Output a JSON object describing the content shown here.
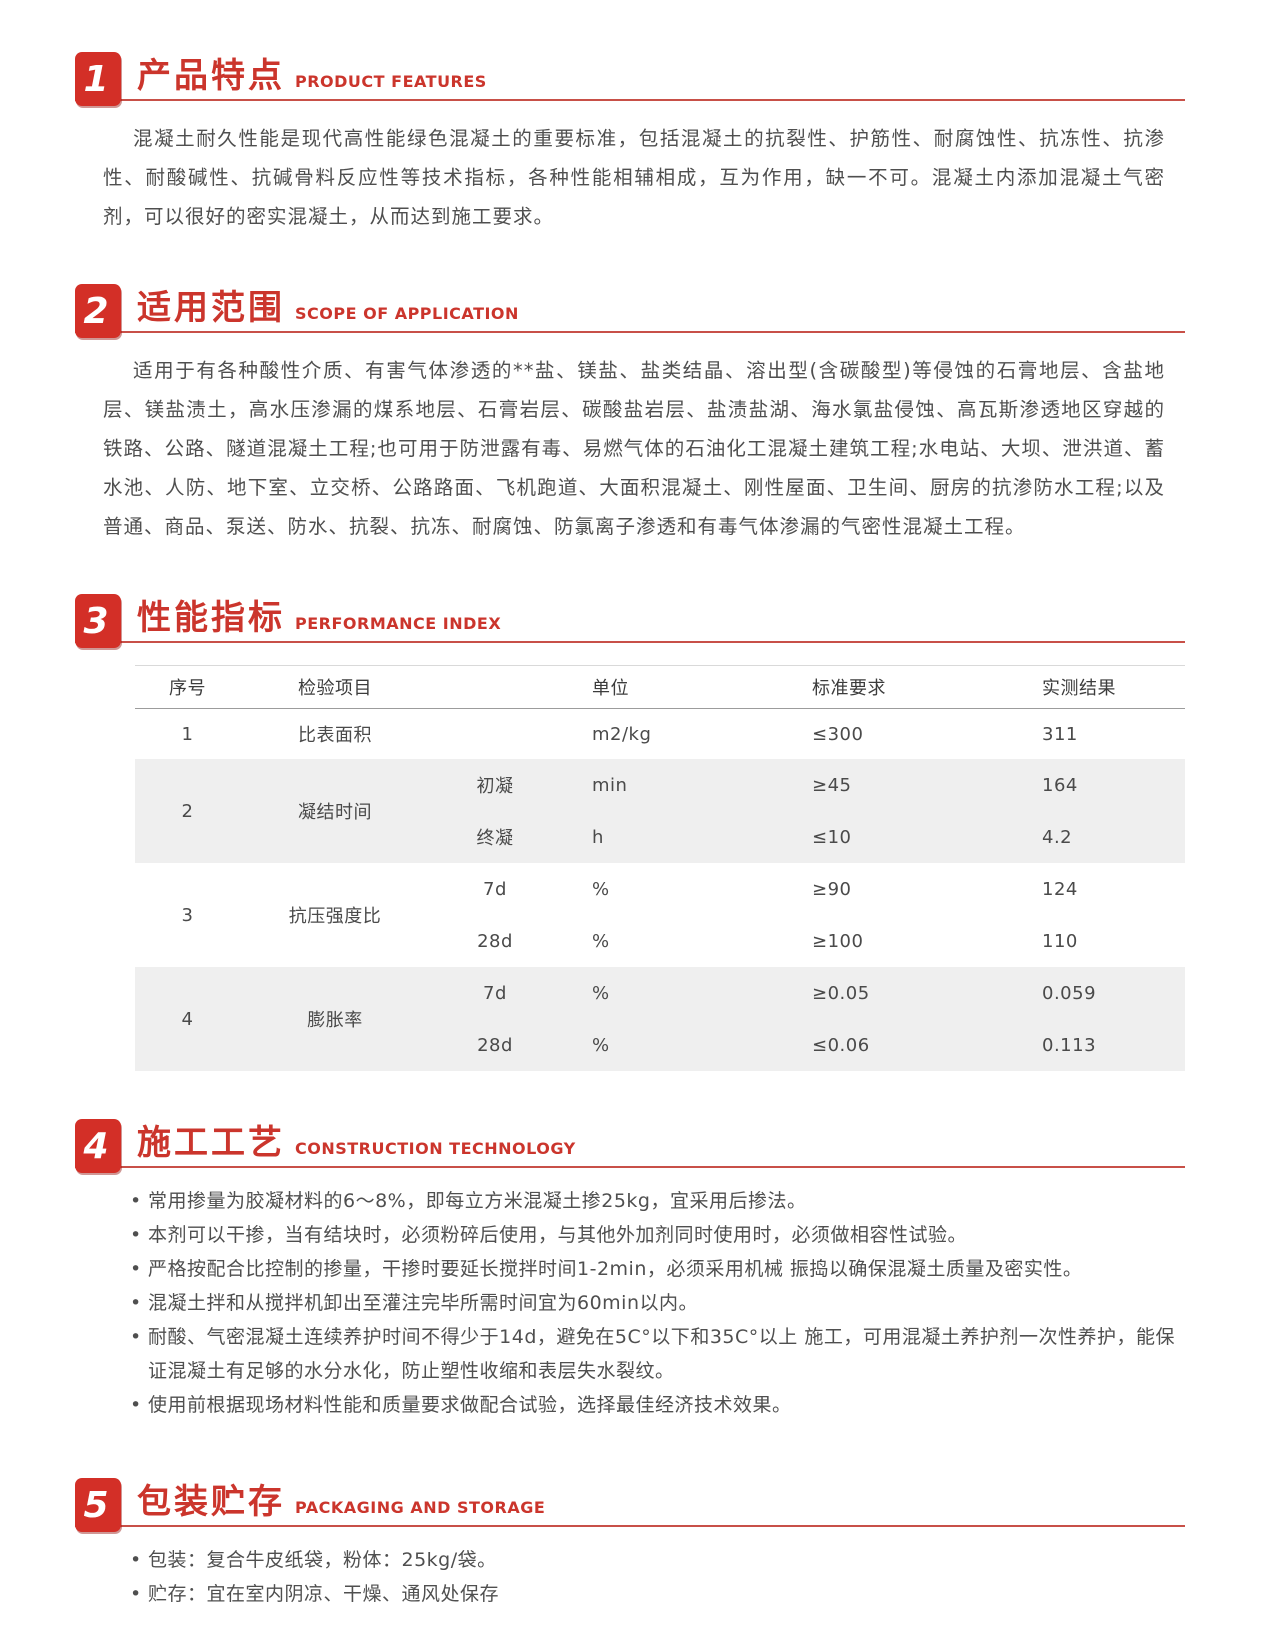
{
  "colors": {
    "accent_red": "#d32f27",
    "title_red": "#cb352c",
    "rule_red": "#c85048",
    "body_text": "#4f4f4f",
    "table_shade": "#efefef"
  },
  "sections": {
    "s1": {
      "num": "1",
      "title_cn": "产品特点",
      "title_en": "PRODUCT FEATURES",
      "body": "混凝土耐久性能是现代高性能绿色混凝土的重要标准，包括混凝土的抗裂性、护筋性、耐腐蚀性、抗冻性、抗渗性、耐酸碱性、抗碱骨料反应性等技术指标，各种性能相辅相成，互为作用，缺一不可。混凝土内添加混凝土气密剂，可以很好的密实混凝土，从而达到施工要求。"
    },
    "s2": {
      "num": "2",
      "title_cn": "适用范围",
      "title_en": "SCOPE OF APPLICATION",
      "body": "适用于有各种酸性介质、有害气体渗透的**盐、镁盐、盐类结晶、溶出型(含碳酸型)等侵蚀的石膏地层、含盐地层、镁盐渍土，高水压渗漏的煤系地层、石膏岩层、碳酸盐岩层、盐渍盐湖、海水氯盐侵蚀、高瓦斯渗透地区穿越的铁路、公路、隧道混凝土工程;也可用于防泄露有毒、易燃气体的石油化工混凝土建筑工程;水电站、大坝、泄洪道、蓄水池、人防、地下室、立交桥、公路路面、飞机跑道、大面积混凝土、刚性屋面、卫生间、厨房的抗渗防水工程;以及普通、商品、泵送、防水、抗裂、抗冻、耐腐蚀、防氯离子渗透和有毒气体渗漏的气密性混凝土工程。"
    },
    "s3": {
      "num": "3",
      "title_cn": "性能指标",
      "title_en": "PERFORMANCE INDEX"
    },
    "s4": {
      "num": "4",
      "title_cn": "施工工艺",
      "title_en": "CONSTRUCTION TECHNOLOGY",
      "bullets": [
        "常用掺量为胶凝材料的6～8%，即每立方米混凝土掺25kg，宜采用后掺法。",
        "本剂可以干掺，当有结块时，必须粉碎后使用，与其他外加剂同时使用时，必须做相容性试验。",
        "严格按配合比控制的掺量，干掺时要延长搅拌时间1-2min，必须采用机械 振捣以确保混凝土质量及密实性。",
        "混凝土拌和从搅拌机卸出至灌注完毕所需时间宜为60min以内。",
        "耐酸、气密混凝土连续养护时间不得少于14d，避免在5C°以下和35C°以上 施工，可用混凝土养护剂一次性养护，能保证混凝土有足够的水分水化，防止塑性收缩和表层失水裂纹。",
        "使用前根据现场材料性能和质量要求做配合试验，选择最佳经济技术效果。"
      ]
    },
    "s5": {
      "num": "5",
      "title_cn": "包装贮存",
      "title_en": "PACKAGING AND STORAGE",
      "bullets": [
        "包装：复合牛皮纸袋，粉体：25kg/袋。",
        "贮存：宜在室内阴凉、干燥、通风处保存"
      ]
    }
  },
  "perf_table": {
    "headers": {
      "no": "序号",
      "item": "检验项目",
      "sub": "",
      "unit": "单位",
      "std": "标准要求",
      "result": "实测结果"
    },
    "rows": [
      {
        "no": "1",
        "item": "比表面积",
        "subs": [
          {
            "label": "",
            "unit": "m2/kg",
            "std": "≤300",
            "result": "311"
          }
        ]
      },
      {
        "no": "2",
        "item": "凝结时间",
        "subs": [
          {
            "label": "初凝",
            "unit": "min",
            "std": "≥45",
            "result": "164"
          },
          {
            "label": "终凝",
            "unit": "h",
            "std": "≤10",
            "result": "4.2"
          }
        ]
      },
      {
        "no": "3",
        "item": "抗压强度比",
        "subs": [
          {
            "label": "7d",
            "unit": "%",
            "std": "≥90",
            "result": "124"
          },
          {
            "label": "28d",
            "unit": "%",
            "std": "≥100",
            "result": "110"
          }
        ]
      },
      {
        "no": "4",
        "item": "膨胀率",
        "subs": [
          {
            "label": "7d",
            "unit": "%",
            "std": "≥0.05",
            "result": "0.059"
          },
          {
            "label": "28d",
            "unit": "%",
            "std": "≤0.06",
            "result": "0.113"
          }
        ]
      }
    ]
  }
}
